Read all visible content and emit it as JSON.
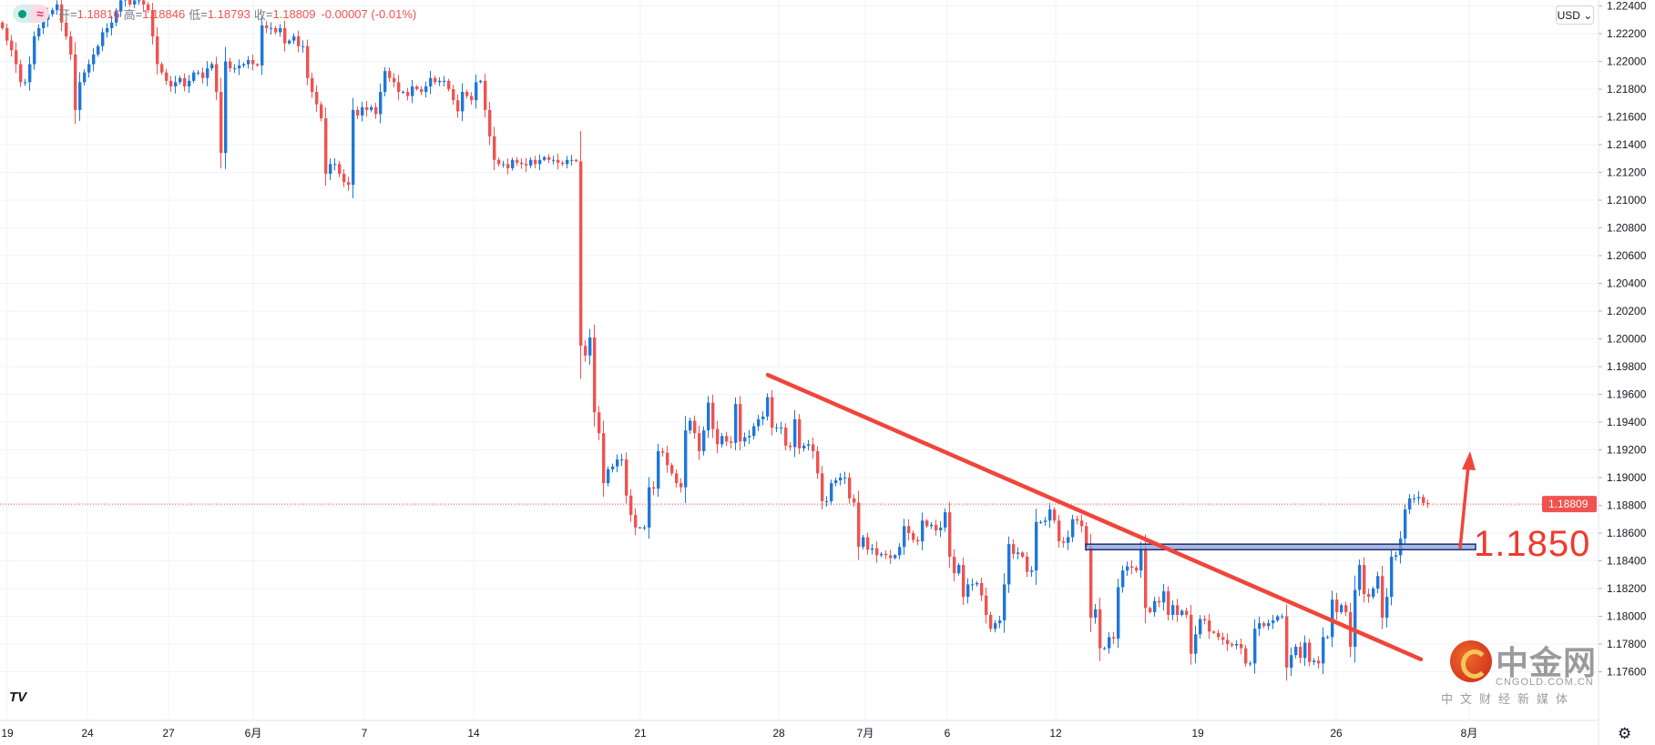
{
  "legend": {
    "open_label": "开",
    "open": "1.18816",
    "high_label": "高",
    "high": "1.18846",
    "low_label": "低",
    "low": "1.18793",
    "close_label": "收",
    "close": "1.18809",
    "change": "-0.00007 (-0.01%)"
  },
  "currency_button": "USD ⌄",
  "annotation_label": "1.1850",
  "watermark": {
    "title": "中金网",
    "domain": "CNGOLD.COM.CN",
    "tagline": "中文财经新媒体"
  },
  "logo": "TV",
  "colors": {
    "up": "#1f77d9",
    "down": "#ef5350",
    "trendline": "#f0463a",
    "zone_fill": "#8ea0d0",
    "zone_border": "#1c2f7f",
    "price_line": "#ef5350"
  },
  "icons": [
    "tradingview-logo-icon",
    "settings-gear-icon",
    "chevron-down-icon",
    "arrow-up-icon"
  ],
  "chart_data": {
    "type": "candlestick",
    "ylim": [
      1.173,
      1.2244
    ],
    "y_ticks": [
      "1.22400",
      "1.22200",
      "1.22000",
      "1.21800",
      "1.21600",
      "1.21400",
      "1.21200",
      "1.21000",
      "1.20800",
      "1.20600",
      "1.20400",
      "1.20200",
      "1.20000",
      "1.19800",
      "1.19600",
      "1.19400",
      "1.19200",
      "1.19000",
      "1.18800",
      "1.18600",
      "1.18400",
      "1.18200",
      "1.18000",
      "1.17800",
      "1.17600"
    ],
    "x_ticks": [
      "19",
      "24",
      "27",
      "6月",
      "7",
      "14",
      "21",
      "28",
      "7月",
      "6",
      "12",
      "19",
      "26",
      "8月"
    ],
    "grid": true,
    "last_price": "1.18809",
    "close": [
      1.2224,
      1.2215,
      1.2208,
      1.2198,
      1.2185,
      1.2185,
      1.2198,
      1.2218,
      1.2224,
      1.223,
      1.2234,
      1.2237,
      1.2241,
      1.2228,
      1.2218,
      1.2205,
      1.2165,
      1.2185,
      1.2192,
      1.2198,
      1.2205,
      1.2211,
      1.2221,
      1.2224,
      1.2228,
      1.2236,
      1.2244,
      1.2247,
      1.2241,
      1.2244,
      1.2244,
      1.2241,
      1.2237,
      1.2218,
      1.2198,
      1.2192,
      1.2186,
      1.2182,
      1.2185,
      1.2188,
      1.2182,
      1.2186,
      1.2192,
      1.2192,
      1.2188,
      1.2195,
      1.2198,
      1.2178,
      1.2134,
      1.22,
      1.2195,
      1.2195,
      1.2197,
      1.2198,
      1.2201,
      1.2198,
      1.2197,
      1.2226,
      1.2224,
      1.2224,
      1.2221,
      1.2224,
      1.2213,
      1.2215,
      1.2218,
      1.2211,
      1.2211,
      1.2188,
      1.2178,
      1.2169,
      1.2159,
      1.2119,
      1.2126,
      1.2126,
      1.2119,
      1.2113,
      1.2111,
      1.2165,
      1.2161,
      1.2167,
      1.2165,
      1.2167,
      1.2162,
      1.2178,
      1.2193,
      1.2188,
      1.2185,
      1.2178,
      1.2178,
      1.2175,
      1.2182,
      1.218,
      1.2178,
      1.2182,
      1.2188,
      1.2185,
      1.2186,
      1.2186,
      1.218,
      1.2172,
      1.2164,
      1.2178,
      1.2175,
      1.2172,
      1.2185,
      1.2186,
      1.2165,
      1.2146,
      1.2129,
      1.2126,
      1.2126,
      1.2123,
      1.2129,
      1.2127,
      1.2126,
      1.2125,
      1.2129,
      1.2126,
      1.2129,
      1.2131,
      1.2129,
      1.2129,
      1.2127,
      1.2126,
      1.2129,
      1.2129,
      1.2128,
      1.1995,
      1.1988,
      1.2001,
      1.1947,
      1.1932,
      1.1896,
      1.1906,
      1.1908,
      1.1913,
      1.1913,
      1.1887,
      1.1873,
      1.1864,
      1.1864,
      1.1864,
      1.1893,
      1.1892,
      1.1919,
      1.1918,
      1.1909,
      1.1903,
      1.1896,
      1.1893,
      1.1934,
      1.1941,
      1.1932,
      1.1919,
      1.1934,
      1.1954,
      1.1935,
      1.1924,
      1.193,
      1.1926,
      1.1925,
      1.1953,
      1.1926,
      1.1929,
      1.193,
      1.1937,
      1.1942,
      1.1944,
      1.1958,
      1.1936,
      1.1936,
      1.1936,
      1.1923,
      1.1922,
      1.1942,
      1.1921,
      1.1923,
      1.1924,
      1.1919,
      1.1903,
      1.1883,
      1.1883,
      1.1896,
      1.1898,
      1.19,
      1.19,
      1.1885,
      1.1882,
      1.185,
      1.1857,
      1.1848,
      1.1849,
      1.1844,
      1.1845,
      1.1844,
      1.1842,
      1.1844,
      1.185,
      1.1865,
      1.186,
      1.1855,
      1.1854,
      1.1869,
      1.1865,
      1.1866,
      1.1862,
      1.1864,
      1.1875,
      1.1843,
      1.1831,
      1.1837,
      1.1814,
      1.1823,
      1.1823,
      1.1824,
      1.1815,
      1.1801,
      1.1791,
      1.1795,
      1.1797,
      1.1823,
      1.1852,
      1.1845,
      1.1846,
      1.1843,
      1.1832,
      1.1833,
      1.1868,
      1.1868,
      1.1869,
      1.1877,
      1.1869,
      1.1854,
      1.1853,
      1.1857,
      1.187,
      1.1869,
      1.1865,
      1.185,
      1.1799,
      1.1805,
      1.1777,
      1.1777,
      1.1785,
      1.1784,
      1.1821,
      1.1833,
      1.1836,
      1.1835,
      1.1833,
      1.1849,
      1.1806,
      1.1803,
      1.1811,
      1.181,
      1.1818,
      1.1801,
      1.1808,
      1.1801,
      1.1804,
      1.1801,
      1.1773,
      1.1787,
      1.1798,
      1.1797,
      1.1789,
      1.1788,
      1.1785,
      1.1783,
      1.178,
      1.1779,
      1.178,
      1.1777,
      1.1766,
      1.1766,
      1.1791,
      1.1795,
      1.1793,
      1.1795,
      1.1797,
      1.18,
      1.18,
      1.1763,
      1.1772,
      1.1778,
      1.177,
      1.1781,
      1.1767,
      1.1768,
      1.1766,
      1.1785,
      1.1785,
      1.1812,
      1.1803,
      1.1808,
      1.1803,
      1.1778,
      1.1819,
      1.1837,
      1.1816,
      1.1814,
      1.182,
      1.1829,
      1.1799,
      1.1814,
      1.1843,
      1.1844,
      1.1856,
      1.1877,
      1.1885,
      1.1885,
      1.1886,
      1.18816,
      1.18809
    ],
    "trendline": {
      "from": {
        "date": "28",
        "price": 1.1974
      },
      "to": {
        "price": 1.1769
      }
    },
    "support_zone": {
      "low": 1.1848,
      "high": 1.1852
    }
  }
}
